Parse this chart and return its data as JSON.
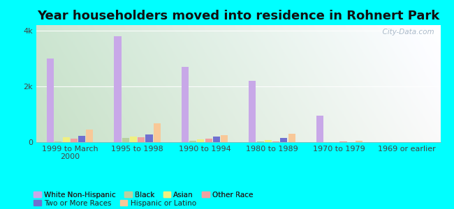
{
  "title": "Year householders moved into residence in Rohnert Park",
  "background_color": "#00FFFF",
  "categories": [
    "1999 to March\n2000",
    "1995 to 1998",
    "1990 to 1994",
    "1980 to 1989",
    "1970 to 1979",
    "1969 or earlier"
  ],
  "series": {
    "White Non-Hispanic": {
      "values": [
        3000,
        3800,
        2700,
        2200,
        950,
        0
      ],
      "color": "#c8a8e8"
    },
    "Black": {
      "values": [
        30,
        150,
        50,
        30,
        10,
        0
      ],
      "color": "#b8d0a0"
    },
    "Asian": {
      "values": [
        180,
        200,
        100,
        80,
        0,
        0
      ],
      "color": "#f0f080"
    },
    "Other Race": {
      "values": [
        130,
        170,
        120,
        30,
        30,
        0
      ],
      "color": "#f0a0a0"
    },
    "Two or More Races": {
      "values": [
        220,
        280,
        200,
        160,
        0,
        0
      ],
      "color": "#7070d0"
    },
    "Hispanic or Latino": {
      "values": [
        450,
        680,
        250,
        290,
        50,
        0
      ],
      "color": "#f8c898"
    }
  },
  "ylim": [
    0,
    4200
  ],
  "yticks": [
    0,
    2000,
    4000
  ],
  "ytick_labels": [
    "0",
    "2k",
    "4k"
  ],
  "watermark": "  City-Data.com",
  "title_fontsize": 13,
  "legend_fontsize": 7.5,
  "tick_fontsize": 8,
  "legend_items": [
    [
      "White Non-Hispanic",
      "#c8a8e8"
    ],
    [
      "Black",
      "#b8d0a0"
    ],
    [
      "Asian",
      "#f0f080"
    ],
    [
      "Other Race",
      "#f0a0a0"
    ],
    [
      "Two or More Races",
      "#7070d0"
    ],
    [
      "Hispanic or Latino",
      "#f8c898"
    ]
  ]
}
